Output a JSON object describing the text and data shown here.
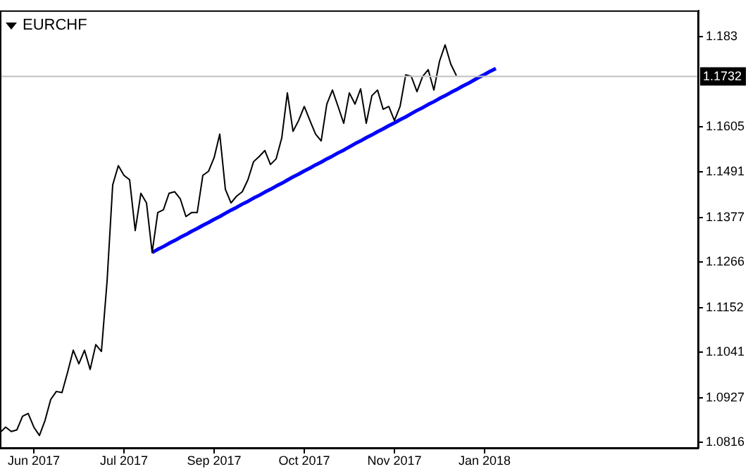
{
  "chart_data": {
    "type": "line",
    "title": "EURCHF",
    "categories": [
      null,
      null,
      null,
      null,
      null,
      null,
      "Jun 2017",
      null,
      null,
      null,
      null,
      null,
      null,
      null,
      null,
      null,
      null,
      null,
      null,
      null,
      null,
      null,
      "Jul 2017",
      null,
      null,
      null,
      null,
      null,
      null,
      null,
      null,
      null,
      null,
      null,
      null,
      null,
      null,
      null,
      "Sep 2017",
      null,
      null,
      null,
      null,
      null,
      null,
      null,
      null,
      null,
      null,
      null,
      null,
      null,
      null,
      null,
      "Oct 2017",
      null,
      null,
      null,
      null,
      null,
      null,
      null,
      null,
      null,
      null,
      null,
      null,
      null,
      null,
      null,
      "Nov 2017",
      null,
      null,
      null,
      null,
      null,
      null,
      null,
      null,
      null,
      null,
      null,
      null,
      null,
      null,
      null,
      "Jan 2018",
      null,
      null,
      null,
      null,
      null,
      null,
      null,
      null,
      null,
      null,
      null,
      null,
      null,
      null,
      null,
      null,
      null,
      null,
      null,
      null,
      null,
      null,
      null,
      null,
      null,
      null,
      null,
      null,
      null,
      null,
      null,
      null,
      null,
      null,
      null,
      null,
      null,
      null
    ],
    "ylim": [
      1.0802,
      1.1895
    ],
    "yticks": [
      1.0816,
      1.0927,
      1.1041,
      1.1152,
      1.1266,
      1.1377,
      1.1491,
      1.1605,
      1.183
    ],
    "grid": false,
    "legend": false,
    "marker": "none",
    "ref_lines": [
      {
        "axis": "y",
        "value": 1.1732,
        "label": "1.1732",
        "color": "#c0c0c0"
      }
    ],
    "series": [
      {
        "color": "#000000",
        "values": [
          1.084,
          1.0854,
          1.0843,
          1.0847,
          1.0881,
          1.0888,
          1.0854,
          1.0833,
          1.0871,
          1.0923,
          1.0943,
          1.094,
          1.0991,
          1.1046,
          1.1012,
          1.1046,
          1.0998,
          1.106,
          1.1043,
          1.1218,
          1.1459,
          1.1507,
          1.1483,
          1.1472,
          1.1345,
          1.1438,
          1.1414,
          1.129,
          1.139,
          1.1397,
          1.1438,
          1.1442,
          1.1424,
          1.138,
          1.139,
          1.139,
          1.1483,
          1.1493,
          1.1527,
          1.1586,
          1.1448,
          1.1414,
          1.1431,
          1.1442,
          1.1472,
          1.1517,
          1.153,
          1.1545,
          1.151,
          1.1524,
          1.1576,
          1.1689,
          1.1593,
          1.162,
          1.1655,
          1.162,
          1.1586,
          1.1569,
          1.1661,
          1.1696,
          1.1655,
          1.1613,
          1.1689,
          1.1661,
          1.1699,
          1.1613,
          1.1682,
          1.1696,
          1.1648,
          1.1655,
          1.162,
          1.1655,
          1.1734,
          1.173,
          1.1692,
          1.173,
          1.1747,
          1.1696,
          1.1768,
          1.1809,
          1.1761,
          1.1732,
          null,
          null,
          null,
          null,
          null,
          null,
          null,
          null,
          null,
          null,
          null,
          null,
          null,
          null,
          null,
          null,
          null,
          null,
          null,
          null,
          null,
          null,
          null,
          null,
          null,
          null,
          null,
          null,
          null,
          null,
          null,
          null,
          null,
          null,
          null,
          null,
          null,
          null,
          null,
          null,
          null,
          null,
          null
        ]
      },
      {
        "color": "#0000ff",
        "values": [
          null,
          null,
          null,
          null,
          null,
          null,
          null,
          null,
          null,
          null,
          null,
          null,
          null,
          null,
          null,
          null,
          null,
          null,
          null,
          null,
          null,
          null,
          null,
          null,
          null,
          null,
          null,
          1.129,
          1.1298,
          1.1305,
          1.1313,
          1.132,
          1.1328,
          1.1335,
          1.1343,
          1.135,
          1.1358,
          1.1365,
          1.1373,
          1.138,
          1.1388,
          1.1396,
          1.1403,
          1.1411,
          1.1418,
          1.1426,
          1.1433,
          1.1441,
          1.1448,
          1.1456,
          1.1463,
          1.1471,
          1.1479,
          1.1486,
          1.1494,
          1.1501,
          1.1509,
          1.1516,
          1.1524,
          1.1531,
          1.1539,
          1.1546,
          1.1554,
          1.1562,
          1.1569,
          1.1577,
          1.1584,
          1.1592,
          1.1599,
          1.1607,
          1.1614,
          1.1622,
          1.1629,
          1.1637,
          1.1645,
          1.1652,
          1.166,
          1.1667,
          1.1675,
          1.1682,
          1.169,
          1.1697,
          1.1705,
          1.1712,
          1.172,
          1.1728,
          1.1735,
          1.1743,
          1.175,
          null,
          null,
          null,
          null,
          null,
          null,
          null,
          null,
          null,
          null,
          null,
          null,
          null,
          null,
          null,
          null,
          null,
          null,
          null,
          null,
          null,
          null,
          null,
          null,
          null,
          null,
          null,
          null,
          null,
          null,
          null,
          null,
          null,
          null,
          null,
          null
        ]
      }
    ]
  }
}
